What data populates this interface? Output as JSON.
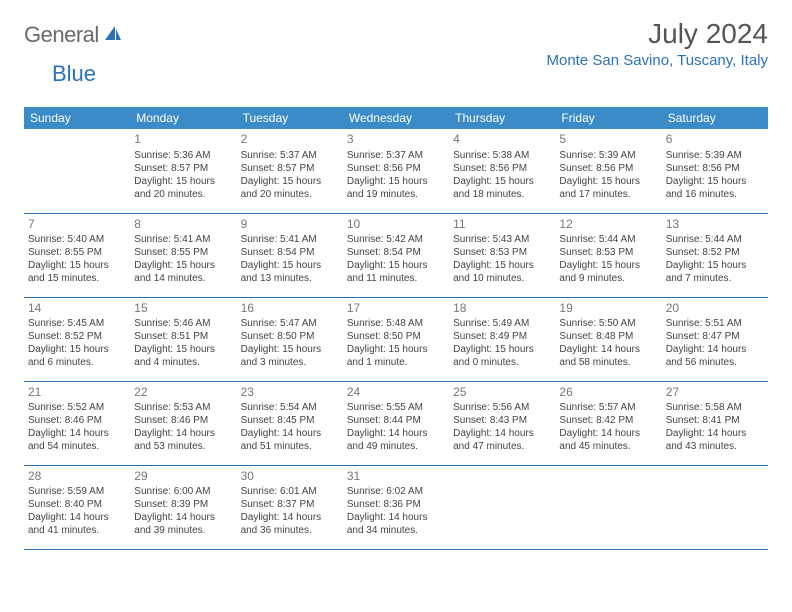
{
  "brand": {
    "general": "General",
    "blue": "Blue"
  },
  "title": "July 2024",
  "location": "Monte San Savino, Tuscany, Italy",
  "colors": {
    "header_bg": "#3b8bc9",
    "accent": "#2b72b8",
    "text": "#444444",
    "muted": "#777777",
    "logo_grey": "#6a6a6a"
  },
  "weekdays": [
    "Sunday",
    "Monday",
    "Tuesday",
    "Wednesday",
    "Thursday",
    "Friday",
    "Saturday"
  ],
  "weeks": [
    [
      {
        "empty": true
      },
      {
        "day": "1",
        "sunrise": "Sunrise: 5:36 AM",
        "sunset": "Sunset: 8:57 PM",
        "daylight1": "Daylight: 15 hours",
        "daylight2": "and 20 minutes."
      },
      {
        "day": "2",
        "sunrise": "Sunrise: 5:37 AM",
        "sunset": "Sunset: 8:57 PM",
        "daylight1": "Daylight: 15 hours",
        "daylight2": "and 20 minutes."
      },
      {
        "day": "3",
        "sunrise": "Sunrise: 5:37 AM",
        "sunset": "Sunset: 8:56 PM",
        "daylight1": "Daylight: 15 hours",
        "daylight2": "and 19 minutes."
      },
      {
        "day": "4",
        "sunrise": "Sunrise: 5:38 AM",
        "sunset": "Sunset: 8:56 PM",
        "daylight1": "Daylight: 15 hours",
        "daylight2": "and 18 minutes."
      },
      {
        "day": "5",
        "sunrise": "Sunrise: 5:39 AM",
        "sunset": "Sunset: 8:56 PM",
        "daylight1": "Daylight: 15 hours",
        "daylight2": "and 17 minutes."
      },
      {
        "day": "6",
        "sunrise": "Sunrise: 5:39 AM",
        "sunset": "Sunset: 8:56 PM",
        "daylight1": "Daylight: 15 hours",
        "daylight2": "and 16 minutes."
      }
    ],
    [
      {
        "day": "7",
        "sunrise": "Sunrise: 5:40 AM",
        "sunset": "Sunset: 8:55 PM",
        "daylight1": "Daylight: 15 hours",
        "daylight2": "and 15 minutes."
      },
      {
        "day": "8",
        "sunrise": "Sunrise: 5:41 AM",
        "sunset": "Sunset: 8:55 PM",
        "daylight1": "Daylight: 15 hours",
        "daylight2": "and 14 minutes."
      },
      {
        "day": "9",
        "sunrise": "Sunrise: 5:41 AM",
        "sunset": "Sunset: 8:54 PM",
        "daylight1": "Daylight: 15 hours",
        "daylight2": "and 13 minutes."
      },
      {
        "day": "10",
        "sunrise": "Sunrise: 5:42 AM",
        "sunset": "Sunset: 8:54 PM",
        "daylight1": "Daylight: 15 hours",
        "daylight2": "and 11 minutes."
      },
      {
        "day": "11",
        "sunrise": "Sunrise: 5:43 AM",
        "sunset": "Sunset: 8:53 PM",
        "daylight1": "Daylight: 15 hours",
        "daylight2": "and 10 minutes."
      },
      {
        "day": "12",
        "sunrise": "Sunrise: 5:44 AM",
        "sunset": "Sunset: 8:53 PM",
        "daylight1": "Daylight: 15 hours",
        "daylight2": "and 9 minutes."
      },
      {
        "day": "13",
        "sunrise": "Sunrise: 5:44 AM",
        "sunset": "Sunset: 8:52 PM",
        "daylight1": "Daylight: 15 hours",
        "daylight2": "and 7 minutes."
      }
    ],
    [
      {
        "day": "14",
        "sunrise": "Sunrise: 5:45 AM",
        "sunset": "Sunset: 8:52 PM",
        "daylight1": "Daylight: 15 hours",
        "daylight2": "and 6 minutes."
      },
      {
        "day": "15",
        "sunrise": "Sunrise: 5:46 AM",
        "sunset": "Sunset: 8:51 PM",
        "daylight1": "Daylight: 15 hours",
        "daylight2": "and 4 minutes."
      },
      {
        "day": "16",
        "sunrise": "Sunrise: 5:47 AM",
        "sunset": "Sunset: 8:50 PM",
        "daylight1": "Daylight: 15 hours",
        "daylight2": "and 3 minutes."
      },
      {
        "day": "17",
        "sunrise": "Sunrise: 5:48 AM",
        "sunset": "Sunset: 8:50 PM",
        "daylight1": "Daylight: 15 hours",
        "daylight2": "and 1 minute."
      },
      {
        "day": "18",
        "sunrise": "Sunrise: 5:49 AM",
        "sunset": "Sunset: 8:49 PM",
        "daylight1": "Daylight: 15 hours",
        "daylight2": "and 0 minutes."
      },
      {
        "day": "19",
        "sunrise": "Sunrise: 5:50 AM",
        "sunset": "Sunset: 8:48 PM",
        "daylight1": "Daylight: 14 hours",
        "daylight2": "and 58 minutes."
      },
      {
        "day": "20",
        "sunrise": "Sunrise: 5:51 AM",
        "sunset": "Sunset: 8:47 PM",
        "daylight1": "Daylight: 14 hours",
        "daylight2": "and 56 minutes."
      }
    ],
    [
      {
        "day": "21",
        "sunrise": "Sunrise: 5:52 AM",
        "sunset": "Sunset: 8:46 PM",
        "daylight1": "Daylight: 14 hours",
        "daylight2": "and 54 minutes."
      },
      {
        "day": "22",
        "sunrise": "Sunrise: 5:53 AM",
        "sunset": "Sunset: 8:46 PM",
        "daylight1": "Daylight: 14 hours",
        "daylight2": "and 53 minutes."
      },
      {
        "day": "23",
        "sunrise": "Sunrise: 5:54 AM",
        "sunset": "Sunset: 8:45 PM",
        "daylight1": "Daylight: 14 hours",
        "daylight2": "and 51 minutes."
      },
      {
        "day": "24",
        "sunrise": "Sunrise: 5:55 AM",
        "sunset": "Sunset: 8:44 PM",
        "daylight1": "Daylight: 14 hours",
        "daylight2": "and 49 minutes."
      },
      {
        "day": "25",
        "sunrise": "Sunrise: 5:56 AM",
        "sunset": "Sunset: 8:43 PM",
        "daylight1": "Daylight: 14 hours",
        "daylight2": "and 47 minutes."
      },
      {
        "day": "26",
        "sunrise": "Sunrise: 5:57 AM",
        "sunset": "Sunset: 8:42 PM",
        "daylight1": "Daylight: 14 hours",
        "daylight2": "and 45 minutes."
      },
      {
        "day": "27",
        "sunrise": "Sunrise: 5:58 AM",
        "sunset": "Sunset: 8:41 PM",
        "daylight1": "Daylight: 14 hours",
        "daylight2": "and 43 minutes."
      }
    ],
    [
      {
        "day": "28",
        "sunrise": "Sunrise: 5:59 AM",
        "sunset": "Sunset: 8:40 PM",
        "daylight1": "Daylight: 14 hours",
        "daylight2": "and 41 minutes."
      },
      {
        "day": "29",
        "sunrise": "Sunrise: 6:00 AM",
        "sunset": "Sunset: 8:39 PM",
        "daylight1": "Daylight: 14 hours",
        "daylight2": "and 39 minutes."
      },
      {
        "day": "30",
        "sunrise": "Sunrise: 6:01 AM",
        "sunset": "Sunset: 8:37 PM",
        "daylight1": "Daylight: 14 hours",
        "daylight2": "and 36 minutes."
      },
      {
        "day": "31",
        "sunrise": "Sunrise: 6:02 AM",
        "sunset": "Sunset: 8:36 PM",
        "daylight1": "Daylight: 14 hours",
        "daylight2": "and 34 minutes."
      },
      {
        "empty": true
      },
      {
        "empty": true
      },
      {
        "empty": true
      }
    ]
  ]
}
